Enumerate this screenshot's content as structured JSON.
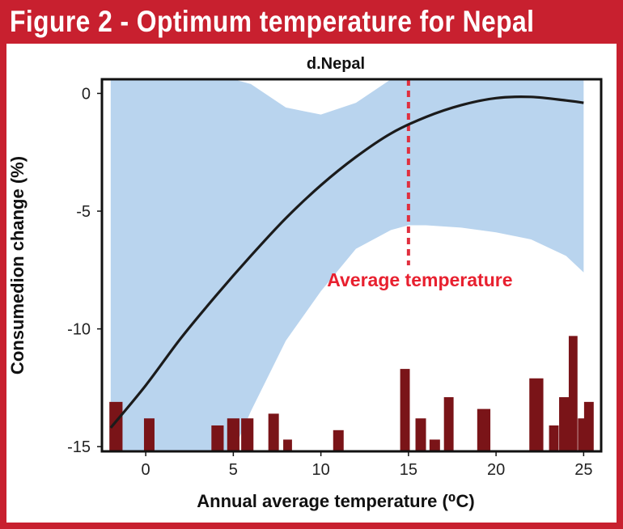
{
  "figure_title": "Figure 2 - Optimum temperature for Nepal",
  "colors": {
    "frame": "#c8202f",
    "band": "#b9d4ee",
    "curve": "#1b1b1b",
    "bars": "#7a1418",
    "avg_line": "#e0303f"
  },
  "chart_data": {
    "type": "line",
    "title": "d.Nepal",
    "xlabel": "Annual average temperature (⁰C)",
    "ylabel": "Consumedion change (%)",
    "xlim": [
      -2.5,
      26
    ],
    "ylim": [
      -15.2,
      0.6
    ],
    "x_ticks": [
      0,
      5,
      10,
      15,
      20,
      25
    ],
    "y_ticks": [
      0,
      -5,
      -10,
      -15
    ],
    "grid": false,
    "series": [
      {
        "kind": "line",
        "x": [
          -2,
          0,
          2,
          4,
          6,
          8,
          10,
          12,
          14,
          16,
          18,
          20,
          22,
          24,
          25
        ],
        "y": [
          -14.2,
          -12.4,
          -10.4,
          -8.6,
          -6.9,
          -5.3,
          -3.9,
          -2.7,
          -1.7,
          -1.0,
          -0.5,
          -0.2,
          -0.15,
          -0.3,
          -0.4
        ]
      },
      {
        "kind": "confidence_band",
        "x": [
          -2,
          0,
          2,
          4,
          5,
          6,
          8,
          10,
          12,
          14,
          15,
          16,
          18,
          20,
          22,
          24,
          25
        ],
        "upper": [
          0.6,
          0.6,
          0.6,
          0.6,
          0.6,
          0.4,
          -0.6,
          -0.9,
          -0.4,
          0.6,
          0.6,
          0.6,
          0.6,
          0.6,
          0.6,
          0.6,
          0.6
        ],
        "lower": [
          -15.2,
          -15.2,
          -15.2,
          -15.2,
          -15.2,
          -13.5,
          -10.5,
          -8.4,
          -6.6,
          -5.8,
          -5.6,
          -5.6,
          -5.7,
          -5.9,
          -6.2,
          -6.9,
          -7.6
        ]
      },
      {
        "kind": "histogram",
        "x": [
          -1.7,
          0.2,
          4.1,
          5.0,
          5.8,
          7.3,
          8.1,
          11.0,
          14.8,
          15.7,
          16.5,
          17.3,
          19.3,
          22.3,
          23.3,
          23.9,
          24.4,
          24.9,
          25.3
        ],
        "y": [
          -13.1,
          -13.8,
          -14.1,
          -13.8,
          -13.8,
          -13.6,
          -14.7,
          -14.3,
          -11.7,
          -13.8,
          -14.7,
          -12.9,
          -13.4,
          -12.1,
          -14.1,
          -12.9,
          -10.3,
          -13.8,
          -13.1
        ],
        "width": [
          0.75,
          0.6,
          0.7,
          0.7,
          0.7,
          0.6,
          0.5,
          0.6,
          0.55,
          0.6,
          0.6,
          0.55,
          0.75,
          0.8,
          0.55,
          0.6,
          0.5,
          0.45,
          0.55
        ]
      }
    ],
    "annotations": [
      {
        "text": "Average temperature",
        "x": 15,
        "style": "dashed-vertical-line"
      }
    ]
  }
}
